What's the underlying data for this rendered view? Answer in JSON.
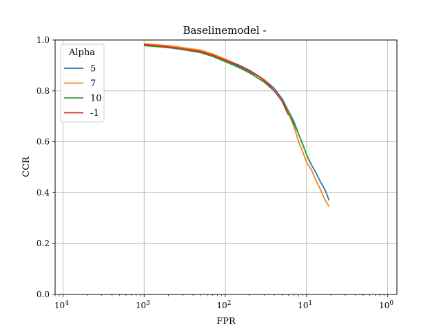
{
  "chart_data": {
    "type": "line",
    "title": "Baselinemodel -",
    "xlabel": "FPR",
    "ylabel": "CCR",
    "x_scale": "log",
    "x_axis_direction": "reversed",
    "xlim": [
      8e-05,
      1.3
    ],
    "ylim": [
      0.0,
      1.0
    ],
    "grid": true,
    "x_ticks": [
      {
        "value": 0.0001,
        "base": "10",
        "exp": "4"
      },
      {
        "value": 0.001,
        "base": "10",
        "exp": "3"
      },
      {
        "value": 0.01,
        "base": "10",
        "exp": "2"
      },
      {
        "value": 0.1,
        "base": "10",
        "exp": "1"
      },
      {
        "value": 1,
        "base": "10",
        "exp": "0"
      }
    ],
    "y_ticks": [
      {
        "value": 0.0,
        "label": "0.0"
      },
      {
        "value": 0.2,
        "label": "0.2"
      },
      {
        "value": 0.4,
        "label": "0.4"
      },
      {
        "value": 0.6,
        "label": "0.6"
      },
      {
        "value": 0.8,
        "label": "0.8"
      },
      {
        "value": 1.0,
        "label": "1.0"
      }
    ],
    "legend": {
      "title": "Alpha",
      "placement": "upper-left"
    },
    "series": [
      {
        "name": "5",
        "color": "#1f77b4",
        "x": [
          0.19,
          0.17,
          0.15,
          0.13,
          0.115,
          0.1,
          0.09,
          0.08,
          0.07,
          0.06,
          0.05,
          0.04,
          0.03,
          0.02,
          0.015,
          0.01,
          0.007,
          0.005,
          0.003,
          0.002,
          0.001
        ],
        "y": [
          0.37,
          0.41,
          0.44,
          0.48,
          0.51,
          0.55,
          0.59,
          0.63,
          0.68,
          0.72,
          0.77,
          0.81,
          0.845,
          0.875,
          0.895,
          0.92,
          0.94,
          0.955,
          0.965,
          0.972,
          0.98
        ]
      },
      {
        "name": "7",
        "color": "#ff7f0e",
        "x": [
          0.19,
          0.17,
          0.15,
          0.13,
          0.115,
          0.1,
          0.09,
          0.08,
          0.07,
          0.06,
          0.05,
          0.04,
          0.03,
          0.02,
          0.015,
          0.01,
          0.007,
          0.005,
          0.003,
          0.002,
          0.001
        ],
        "y": [
          0.345,
          0.37,
          0.41,
          0.45,
          0.49,
          0.52,
          0.56,
          0.6,
          0.66,
          0.71,
          0.76,
          0.8,
          0.845,
          0.88,
          0.9,
          0.925,
          0.945,
          0.96,
          0.97,
          0.978,
          0.985
        ]
      },
      {
        "name": "10",
        "color": "#2ca02c",
        "x": [
          0.11,
          0.1,
          0.09,
          0.08,
          0.07,
          0.06,
          0.05,
          0.04,
          0.03,
          0.02,
          0.015,
          0.01,
          0.007,
          0.005,
          0.003,
          0.002,
          0.001
        ],
        "y": [
          0.52,
          0.55,
          0.59,
          0.63,
          0.67,
          0.72,
          0.76,
          0.8,
          0.835,
          0.87,
          0.89,
          0.915,
          0.935,
          0.95,
          0.962,
          0.97,
          0.978
        ]
      },
      {
        "name": "-1",
        "color": "#d62728",
        "x": [
          0.06,
          0.055,
          0.05,
          0.045,
          0.04,
          0.035,
          0.03,
          0.025,
          0.02,
          0.015,
          0.01,
          0.007,
          0.005,
          0.003,
          0.002,
          0.001
        ],
        "y": [
          0.705,
          0.73,
          0.76,
          0.78,
          0.8,
          0.82,
          0.84,
          0.86,
          0.88,
          0.9,
          0.92,
          0.94,
          0.953,
          0.965,
          0.973,
          0.982
        ]
      }
    ]
  }
}
